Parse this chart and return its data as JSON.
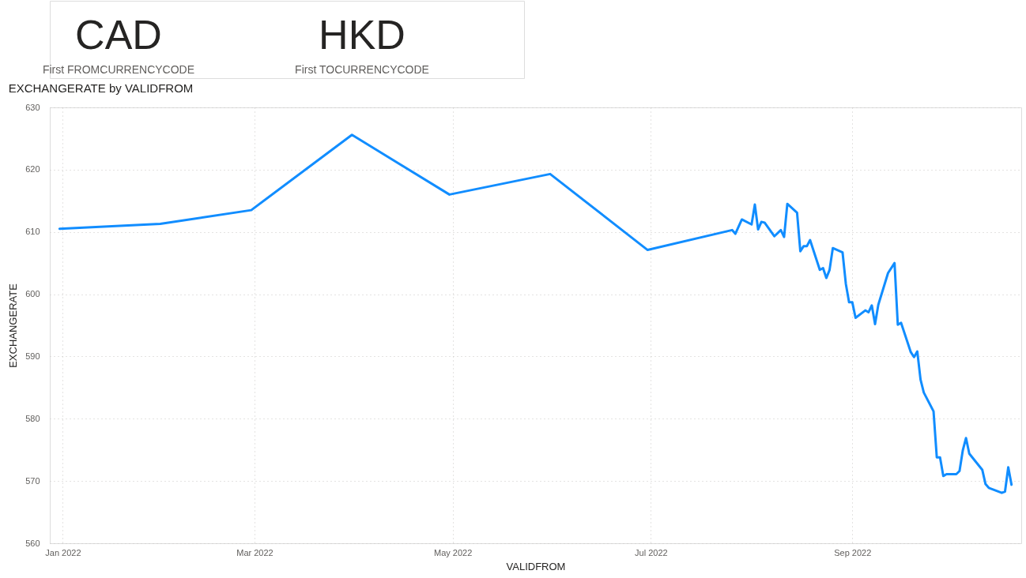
{
  "chart_data": [
    {
      "type": "other",
      "annotations": [
        "CAD",
        "First FROMCURRENCYCODE",
        "HKD",
        "First TOCURRENCYCODE"
      ]
    },
    {
      "type": "line",
      "title": "EXCHANGERATE by VALIDFROM",
      "xlabel": "VALIDFROM",
      "ylabel": "EXCHANGERATE",
      "color": "#118dff",
      "line_style": "solid",
      "grid": true,
      "xlim": [
        "2021-12-28",
        "2022-10-23"
      ],
      "xticks": [
        {
          "value": "2022-01",
          "label": "Jan 2022"
        },
        {
          "value": "2022-03",
          "label": "Mar 2022"
        },
        {
          "value": "2022-05",
          "label": "May 2022"
        },
        {
          "value": "2022-07",
          "label": "Jul 2022"
        },
        {
          "value": "2022-09",
          "label": "Sep 2022"
        }
      ],
      "ylim": [
        560,
        630
      ],
      "yticks": [
        560,
        570,
        580,
        590,
        600,
        610,
        620,
        630
      ],
      "x": [
        "2021-12-31",
        "2022-01-31",
        "2022-02-28",
        "2022-03-31",
        "2022-04-30",
        "2022-05-31",
        "2022-06-30",
        "2022-07-26",
        "2022-07-27",
        "2022-07-29",
        "2022-08-01",
        "2022-08-02",
        "2022-08-03",
        "2022-08-04",
        "2022-08-05",
        "2022-08-08",
        "2022-08-10",
        "2022-08-11",
        "2022-08-12",
        "2022-08-15",
        "2022-08-16",
        "2022-08-17",
        "2022-08-18",
        "2022-08-19",
        "2022-08-22",
        "2022-08-23",
        "2022-08-24",
        "2022-08-25",
        "2022-08-26",
        "2022-08-29",
        "2022-08-30",
        "2022-08-31",
        "2022-09-01",
        "2022-09-02",
        "2022-09-05",
        "2022-09-06",
        "2022-09-07",
        "2022-09-08",
        "2022-09-09",
        "2022-09-12",
        "2022-09-14",
        "2022-09-15",
        "2022-09-16",
        "2022-09-19",
        "2022-09-20",
        "2022-09-21",
        "2022-09-22",
        "2022-09-23",
        "2022-09-26",
        "2022-09-27",
        "2022-09-28",
        "2022-09-29",
        "2022-09-30",
        "2022-10-03",
        "2022-10-04",
        "2022-10-05",
        "2022-10-06",
        "2022-10-07",
        "2022-10-11",
        "2022-10-12",
        "2022-10-13",
        "2022-10-17",
        "2022-10-18",
        "2022-10-19",
        "2022-10-20"
      ],
      "values": [
        610.5,
        611.3,
        613.5,
        625.6,
        616.0,
        619.3,
        607.1,
        610.3,
        609.7,
        612.0,
        611.2,
        614.4,
        610.4,
        611.6,
        611.5,
        609.3,
        610.3,
        609.2,
        614.5,
        613.1,
        606.9,
        607.7,
        607.7,
        608.7,
        603.9,
        604.2,
        602.6,
        603.9,
        607.4,
        606.7,
        601.7,
        598.7,
        598.7,
        596.2,
        597.4,
        597.1,
        598.2,
        595.2,
        598.3,
        603.4,
        605.0,
        595.1,
        595.4,
        590.7,
        589.9,
        590.8,
        586.3,
        584.2,
        581.2,
        573.8,
        573.8,
        570.8,
        571.1,
        571.1,
        571.6,
        574.9,
        576.9,
        574.4,
        571.8,
        569.5,
        568.9,
        568.1,
        568.3,
        572.2,
        569.4
      ]
    }
  ]
}
